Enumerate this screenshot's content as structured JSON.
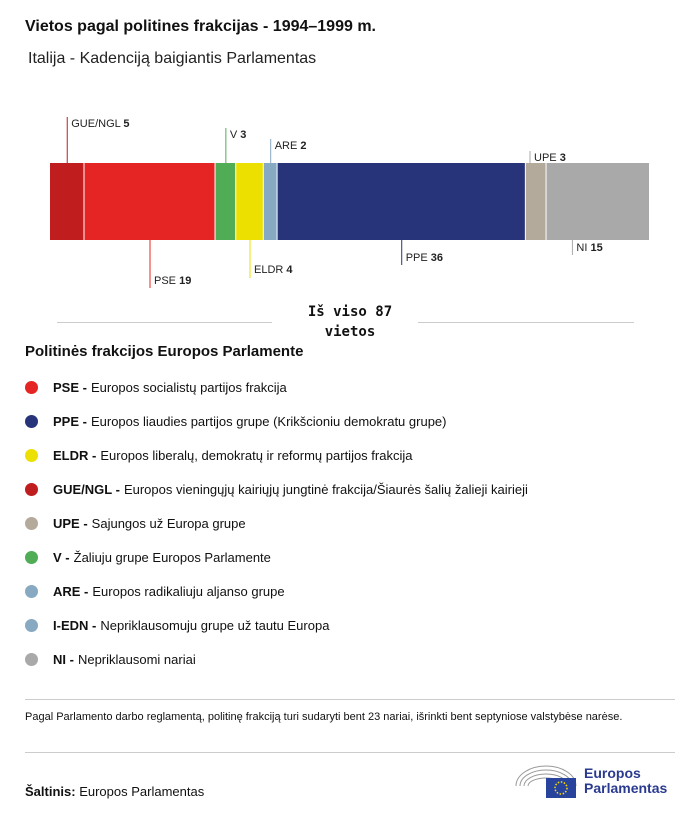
{
  "title": "Vietos pagal politines frakcijas - 1994–1999 m.",
  "subtitle": "Italija - Kadenciją baigiantis Parlamentas",
  "chart_data": {
    "type": "bar",
    "orientation": "horizontal-stacked",
    "categories": [
      "GUE/NGL",
      "PSE",
      "V",
      "ELDR",
      "ARE",
      "PPE",
      "UPE",
      "NI"
    ],
    "values": [
      5,
      19,
      3,
      4,
      2,
      36,
      3,
      15
    ],
    "colors": [
      "#c01d1f",
      "#e42523",
      "#50ad55",
      "#ece000",
      "#87a9c2",
      "#283479",
      "#b3aa9c",
      "#a9a9a9"
    ],
    "total_label_line1": "Iš viso 87",
    "total_label_line2": "vietos"
  },
  "legend": {
    "title": "Politinės frakcijos Europos Parlamente",
    "items": [
      {
        "code": "PSE -",
        "name": "Europos socialistų partijos frakcija",
        "color": "#e42523"
      },
      {
        "code": "PPE -",
        "name": "Europos liaudies partijos grupe (Krikšcioniu demokratu grupe)",
        "color": "#283479"
      },
      {
        "code": "ELDR -",
        "name": "Europos liberalų, demokratų ir reformų partijos frakcija",
        "color": "#ece000"
      },
      {
        "code": "GUE/NGL -",
        "name": "Europos vieningųjų kairiųjų jungtinė frakcija/Šiaurės šalių žalieji kairieji",
        "color": "#c01d1f"
      },
      {
        "code": "UPE -",
        "name": "Sajungos už Europa grupe",
        "color": "#b3aa9c"
      },
      {
        "code": "V -",
        "name": "Žaliuju grupe Europos Parlamente",
        "color": "#50ad55"
      },
      {
        "code": "ARE -",
        "name": "Europos radikaliuju aljanso grupe",
        "color": "#87a9c2"
      },
      {
        "code": "I-EDN -",
        "name": "Nepriklausomuju grupe už tautu Europa",
        "color": "#87a9c2"
      },
      {
        "code": "NI -",
        "name": "Nepriklausomi nariai",
        "color": "#a9a9a9"
      }
    ]
  },
  "note": "Pagal Parlamento darbo reglamentą, politinę frakciją turi sudaryti bent 23 nariai, išrinkti bent septyniose valstybėse narėse.",
  "source": {
    "label": "Šaltinis:",
    "value": "Europos Parlamentas"
  },
  "logo": {
    "line1": "Europos",
    "line2": "Parlamentas"
  }
}
